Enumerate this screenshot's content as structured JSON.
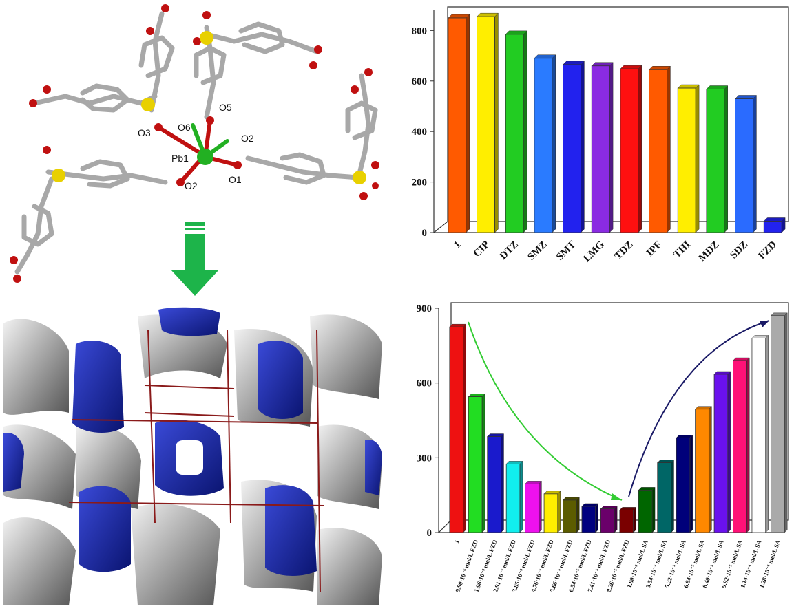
{
  "structure": {
    "atom_labels": [
      "O5",
      "O6",
      "O3",
      "O2",
      "Pb1",
      "O2",
      "O1"
    ],
    "colors": {
      "carbon": "#bfbfbf",
      "oxygen": "#c01010",
      "sulfur": "#e8d000",
      "lead": "#22b022",
      "arrow": "#1db44a",
      "void_surface": "#1a2aa8",
      "framework_surface": "#8c8c8c"
    }
  },
  "chart_data": [
    {
      "type": "bar",
      "categories": [
        "1",
        "CIP",
        "DTZ",
        "SMZ",
        "SMT",
        "LMG",
        "TDZ",
        "IPF",
        "THI",
        "MDZ",
        "SDZ",
        "FZD"
      ],
      "values": [
        850,
        855,
        785,
        690,
        665,
        660,
        648,
        645,
        572,
        568,
        530,
        45
      ],
      "colors": [
        "#ff5a00",
        "#ffee00",
        "#22cc22",
        "#2a7bff",
        "#2222ee",
        "#8a2be2",
        "#ff1010",
        "#ff5a00",
        "#ffee00",
        "#22cc22",
        "#2a6bff",
        "#2222ee"
      ],
      "ylim": [
        0,
        880
      ],
      "yticks": [
        0,
        200,
        400,
        600,
        800
      ],
      "title": "",
      "xlabel": "",
      "ylabel": "",
      "grid": false
    },
    {
      "type": "bar",
      "categories": [
        "1",
        "9.90·10⁻⁶ mol/L FZD",
        "1.96·10⁻⁵ mol/L FZD",
        "2.91·10⁻⁵ mol/L FZD",
        "3.85·10⁻⁵ mol/L FZD",
        "4.76·10⁻⁵ mol/L FZD",
        "5.66·10⁻⁵ mol/L FZD",
        "6.54·10⁻⁵ mol/L FZD",
        "7.41·10⁻⁵ mol/L FZD",
        "8.26·10⁻⁵ mol/L FZD",
        "1.80·10⁻⁵ mol/L SA",
        "3.54·10⁻⁵ mol/L SA",
        "5.22·10⁻⁵ mol/L SA",
        "6.84·10⁻⁵ mol/L SA",
        "8.40·10⁻⁵ mol/L SA",
        "9.92·10⁻⁵ mol/L SA",
        "1.14·10⁻⁴ mol/L SA",
        "1.28·10⁻⁴ mol/L SA"
      ],
      "values": [
        825,
        545,
        385,
        275,
        195,
        155,
        130,
        105,
        95,
        90,
        170,
        280,
        380,
        495,
        635,
        690,
        780,
        870
      ],
      "colors": [
        "#ee1111",
        "#22dd22",
        "#1a1acc",
        "#11eeee",
        "#ee11ee",
        "#ffee00",
        "#5c5c00",
        "#000080",
        "#6a006a",
        "#7a0000",
        "#006600",
        "#006666",
        "#00007a",
        "#ff8800",
        "#6a11ee",
        "#ff1177",
        "#ffffff",
        "#aaaaaa"
      ],
      "ylim": [
        0,
        900
      ],
      "yticks": [
        0,
        300,
        600,
        900
      ],
      "title": "",
      "xlabel": "",
      "ylabel": "",
      "grid": false
    }
  ]
}
